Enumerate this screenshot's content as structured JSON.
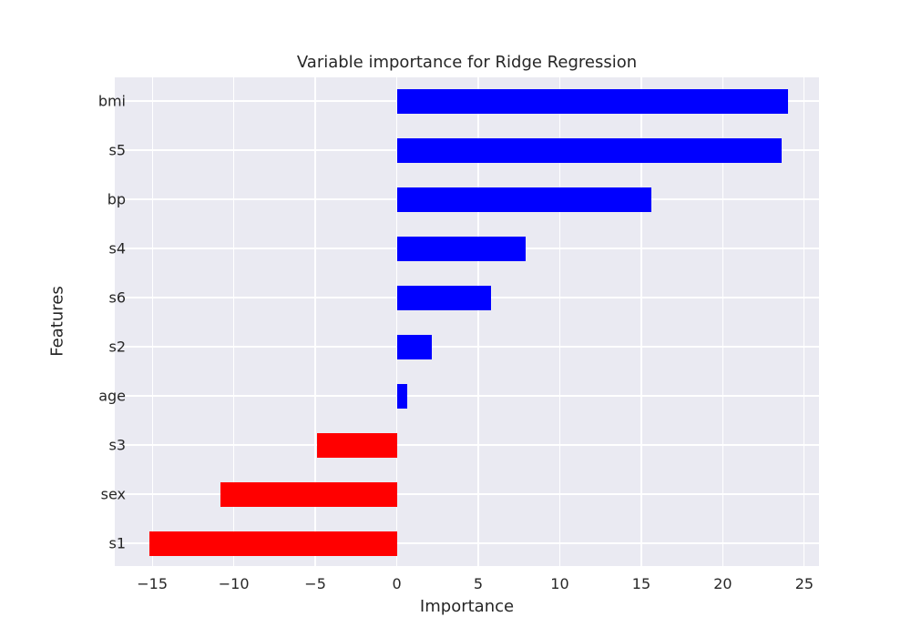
{
  "chart_data": {
    "type": "bar",
    "orientation": "horizontal",
    "title": "Variable importance for Ridge Regression",
    "xlabel": "Importance",
    "ylabel": "Features",
    "categories": [
      "bmi",
      "s5",
      "bp",
      "s4",
      "s6",
      "s2",
      "age",
      "s3",
      "sex",
      "s1"
    ],
    "values": [
      24.0,
      23.6,
      15.6,
      7.9,
      5.8,
      2.15,
      0.65,
      -4.9,
      -10.8,
      -15.2
    ],
    "colors": {
      "positive": "#0000ff",
      "negative": "#ff0000"
    },
    "xlim": [
      -17.3,
      25.9
    ],
    "xticks": [
      -15,
      -10,
      -5,
      0,
      5,
      10,
      15,
      20,
      25
    ],
    "xtick_labels": [
      "−15",
      "−10",
      "−5",
      "0",
      "5",
      "10",
      "15",
      "20",
      "25"
    ],
    "grid": true,
    "legend": null,
    "style": {
      "background": "#eaeaf2",
      "grid_color": "#ffffff"
    }
  }
}
